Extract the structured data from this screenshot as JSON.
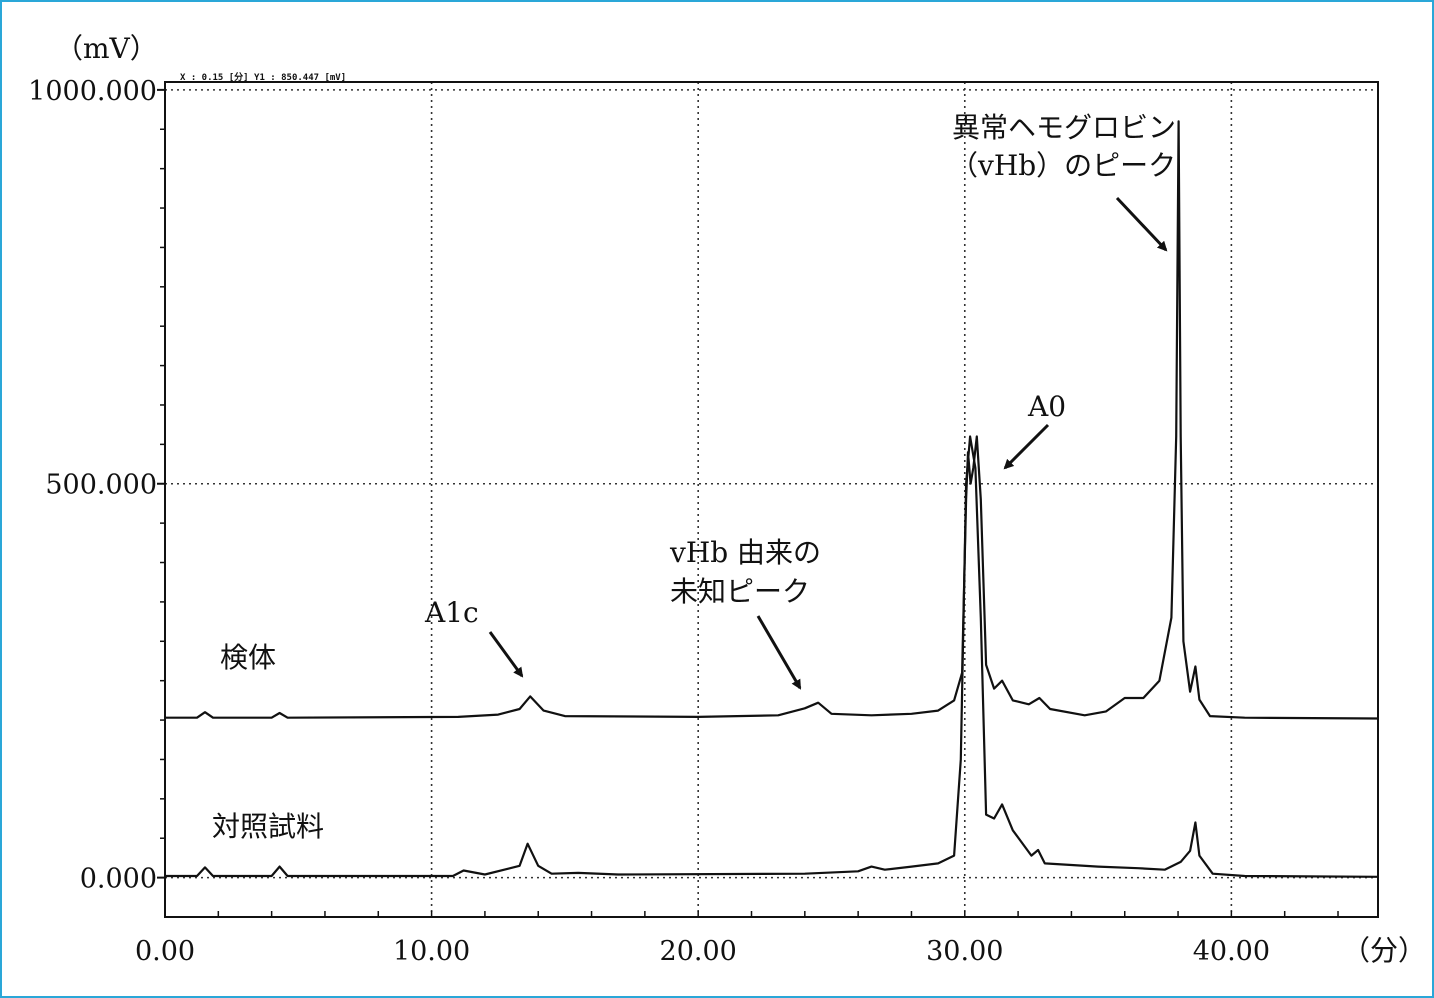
{
  "chart_data": {
    "type": "line",
    "title": "",
    "xlabel": "（分）",
    "ylabel": "（mV）",
    "xlim": [
      0,
      45.5
    ],
    "ylim": [
      -50,
      1010
    ],
    "x_ticks": [
      0,
      10,
      20,
      30,
      40
    ],
    "x_tick_labels": [
      "0.00",
      "10.00",
      "20.00",
      "30.00",
      "40.00"
    ],
    "y_ticks": [
      0,
      500,
      1000
    ],
    "y_tick_labels": [
      "0.000",
      "500.000",
      "1000.000"
    ],
    "grid": true,
    "header_readout": "X :  0.15   [分]  Y1 :  850.447     [mV]",
    "series": [
      {
        "name": "検体",
        "color": "#111111",
        "points": [
          [
            0,
            203
          ],
          [
            1.2,
            203
          ],
          [
            1.5,
            210
          ],
          [
            1.8,
            203
          ],
          [
            4.0,
            203
          ],
          [
            4.3,
            209
          ],
          [
            4.6,
            203
          ],
          [
            11.0,
            204
          ],
          [
            12.5,
            207
          ],
          [
            13.3,
            214
          ],
          [
            13.7,
            230
          ],
          [
            14.2,
            212
          ],
          [
            15.0,
            205
          ],
          [
            20.0,
            204
          ],
          [
            23.0,
            206
          ],
          [
            24.0,
            215
          ],
          [
            24.5,
            222
          ],
          [
            25.0,
            208
          ],
          [
            26.5,
            206
          ],
          [
            28.0,
            208
          ],
          [
            29.0,
            212
          ],
          [
            29.6,
            225
          ],
          [
            29.9,
            260
          ],
          [
            30.05,
            480
          ],
          [
            30.12,
            540
          ],
          [
            30.22,
            500
          ],
          [
            30.32,
            520
          ],
          [
            30.45,
            560
          ],
          [
            30.6,
            480
          ],
          [
            30.8,
            270
          ],
          [
            31.1,
            240
          ],
          [
            31.4,
            250
          ],
          [
            31.8,
            225
          ],
          [
            32.4,
            220
          ],
          [
            32.8,
            228
          ],
          [
            33.2,
            214
          ],
          [
            34.5,
            206
          ],
          [
            35.3,
            211
          ],
          [
            36.0,
            228
          ],
          [
            36.7,
            228
          ],
          [
            37.3,
            250
          ],
          [
            37.75,
            330
          ],
          [
            37.93,
            560
          ],
          [
            38.02,
            960
          ],
          [
            38.1,
            560
          ],
          [
            38.2,
            300
          ],
          [
            38.45,
            236
          ],
          [
            38.65,
            268
          ],
          [
            38.8,
            226
          ],
          [
            39.2,
            205
          ],
          [
            40.5,
            203
          ],
          [
            45.5,
            202
          ]
        ]
      },
      {
        "name": "対照試料",
        "color": "#111111",
        "points": [
          [
            0,
            2
          ],
          [
            1.2,
            2
          ],
          [
            1.5,
            13
          ],
          [
            1.8,
            2
          ],
          [
            4.0,
            2
          ],
          [
            4.3,
            14
          ],
          [
            4.6,
            2
          ],
          [
            10.8,
            2
          ],
          [
            11.2,
            9
          ],
          [
            12.0,
            4
          ],
          [
            13.3,
            15
          ],
          [
            13.6,
            43
          ],
          [
            14.0,
            15
          ],
          [
            14.5,
            5
          ],
          [
            15.5,
            6
          ],
          [
            17.0,
            4
          ],
          [
            24.0,
            5
          ],
          [
            26.0,
            8
          ],
          [
            26.5,
            14
          ],
          [
            27.0,
            10
          ],
          [
            28.0,
            14
          ],
          [
            29.0,
            18
          ],
          [
            29.6,
            28
          ],
          [
            29.85,
            150
          ],
          [
            30.05,
            500
          ],
          [
            30.2,
            560
          ],
          [
            30.4,
            520
          ],
          [
            30.6,
            330
          ],
          [
            30.8,
            80
          ],
          [
            31.1,
            75
          ],
          [
            31.4,
            93
          ],
          [
            31.8,
            60
          ],
          [
            32.5,
            28
          ],
          [
            32.75,
            35
          ],
          [
            33.0,
            18
          ],
          [
            35.0,
            14
          ],
          [
            36.5,
            12
          ],
          [
            37.5,
            10
          ],
          [
            38.1,
            20
          ],
          [
            38.45,
            34
          ],
          [
            38.65,
            70
          ],
          [
            38.8,
            28
          ],
          [
            39.3,
            5
          ],
          [
            40.5,
            2
          ],
          [
            45.5,
            1
          ]
        ]
      }
    ],
    "series_labels": [
      "検体",
      "対照試料"
    ],
    "annotations": [
      {
        "text": "A1c",
        "arrow_to": [
          13.7,
          232
        ]
      },
      {
        "text_lines": [
          "vHb 由来の",
          "未知ピーク"
        ],
        "arrow_to": [
          24.5,
          225
        ]
      },
      {
        "text": "A0",
        "arrow_to": [
          30.9,
          520
        ]
      },
      {
        "text_lines": [
          "異常ヘモグロビン",
          "（vHb）のピーク"
        ],
        "arrow_to": [
          37.9,
          805
        ]
      }
    ]
  }
}
